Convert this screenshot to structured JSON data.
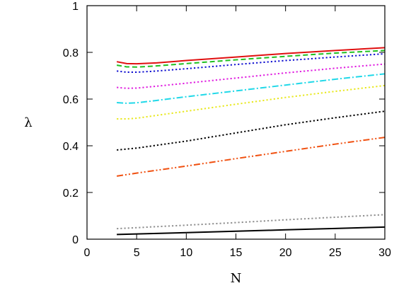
{
  "chart_data": {
    "type": "line",
    "title": "",
    "xlabel": "N",
    "ylabel": "λ",
    "xlim": [
      0,
      30
    ],
    "ylim": [
      0,
      1
    ],
    "x_ticks": [
      "0",
      "5",
      "10",
      "15",
      "20",
      "25",
      "30"
    ],
    "y_ticks": [
      "0",
      "0.2",
      "0.4",
      "0.6",
      "0.8",
      "1"
    ],
    "grid": false,
    "legend": "none",
    "series": [
      {
        "color": "#e01010",
        "dash": "solid",
        "points": [
          [
            3,
            0.76
          ],
          [
            4,
            0.752
          ],
          [
            5,
            0.751
          ],
          [
            7,
            0.755
          ],
          [
            10,
            0.765
          ],
          [
            15,
            0.78
          ],
          [
            20,
            0.795
          ],
          [
            25,
            0.808
          ],
          [
            30,
            0.82
          ]
        ]
      },
      {
        "color": "#20c020",
        "dash": "dashed",
        "points": [
          [
            3,
            0.745
          ],
          [
            4,
            0.738
          ],
          [
            5,
            0.737
          ],
          [
            7,
            0.742
          ],
          [
            10,
            0.752
          ],
          [
            15,
            0.768
          ],
          [
            20,
            0.783
          ],
          [
            25,
            0.797
          ],
          [
            30,
            0.808
          ]
        ]
      },
      {
        "color": "#1010d0",
        "dash": "dotted",
        "points": [
          [
            3,
            0.72
          ],
          [
            4,
            0.715
          ],
          [
            5,
            0.715
          ],
          [
            7,
            0.72
          ],
          [
            10,
            0.73
          ],
          [
            15,
            0.748
          ],
          [
            20,
            0.765
          ],
          [
            25,
            0.78
          ],
          [
            30,
            0.794
          ]
        ]
      },
      {
        "color": "#e020e0",
        "dash": "dotted",
        "points": [
          [
            3,
            0.65
          ],
          [
            4,
            0.646
          ],
          [
            5,
            0.647
          ],
          [
            7,
            0.655
          ],
          [
            10,
            0.668
          ],
          [
            15,
            0.69
          ],
          [
            20,
            0.712
          ],
          [
            25,
            0.732
          ],
          [
            30,
            0.75
          ]
        ]
      },
      {
        "color": "#20d8e8",
        "dash": "dashdot",
        "points": [
          [
            3,
            0.585
          ],
          [
            4,
            0.582
          ],
          [
            5,
            0.584
          ],
          [
            7,
            0.594
          ],
          [
            10,
            0.61
          ],
          [
            15,
            0.635
          ],
          [
            20,
            0.66
          ],
          [
            25,
            0.685
          ],
          [
            30,
            0.708
          ]
        ]
      },
      {
        "color": "#e8e820",
        "dash": "dotted",
        "points": [
          [
            3,
            0.515
          ],
          [
            4,
            0.515
          ],
          [
            5,
            0.518
          ],
          [
            7,
            0.53
          ],
          [
            10,
            0.548
          ],
          [
            15,
            0.578
          ],
          [
            20,
            0.607
          ],
          [
            25,
            0.633
          ],
          [
            30,
            0.658
          ]
        ]
      },
      {
        "color": "#000000",
        "dash": "dotted",
        "points": [
          [
            3,
            0.382
          ],
          [
            5,
            0.39
          ],
          [
            10,
            0.42
          ],
          [
            15,
            0.455
          ],
          [
            20,
            0.49
          ],
          [
            25,
            0.52
          ],
          [
            30,
            0.548
          ]
        ]
      },
      {
        "color": "#f05010",
        "dash": "dashdotdot",
        "points": [
          [
            3,
            0.27
          ],
          [
            5,
            0.283
          ],
          [
            10,
            0.313
          ],
          [
            15,
            0.345
          ],
          [
            20,
            0.376
          ],
          [
            25,
            0.407
          ],
          [
            30,
            0.436
          ]
        ]
      },
      {
        "color": "#909090",
        "dash": "dotted",
        "points": [
          [
            3,
            0.045
          ],
          [
            10,
            0.06
          ],
          [
            15,
            0.071
          ],
          [
            20,
            0.083
          ],
          [
            25,
            0.094
          ],
          [
            30,
            0.105
          ]
        ]
      },
      {
        "color": "#000000",
        "dash": "solid",
        "points": [
          [
            3,
            0.02
          ],
          [
            10,
            0.028
          ],
          [
            15,
            0.034
          ],
          [
            20,
            0.04
          ],
          [
            25,
            0.046
          ],
          [
            30,
            0.052
          ]
        ]
      }
    ]
  }
}
